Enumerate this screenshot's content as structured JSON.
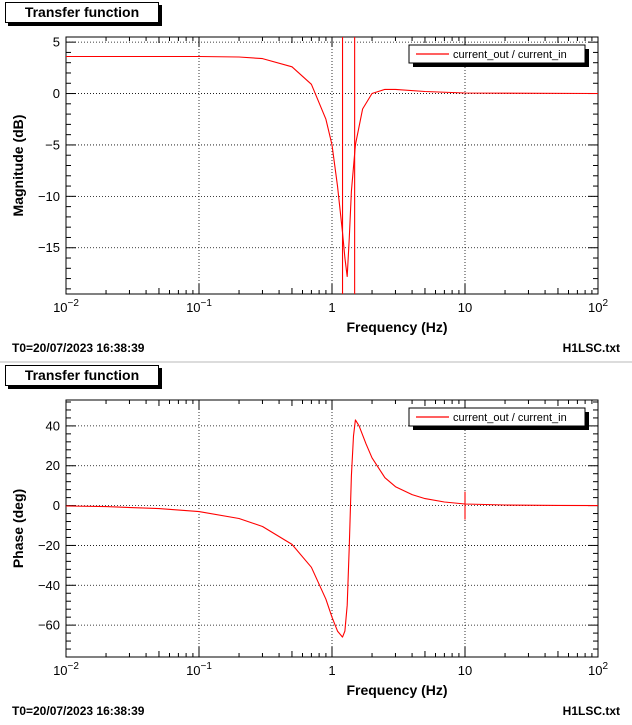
{
  "colors": {
    "curve": "#ff0000",
    "axis": "#000000",
    "grid": "#000000",
    "background": "#ffffff"
  },
  "footer": {
    "t0": "T0=20/07/2023 16:38:39",
    "file": "H1LSC.txt"
  },
  "chart_data": [
    {
      "type": "line",
      "title": "Transfer function",
      "xlabel": "Frequency (Hz)",
      "ylabel": "Magnitude (dB)",
      "xscale": "log",
      "xlim": [
        0.01,
        100
      ],
      "ylim": [
        -19.5,
        5.5
      ],
      "xticks": [
        0.01,
        0.1,
        1,
        10,
        100
      ],
      "xtick_labels": [
        [
          "10",
          "−2"
        ],
        [
          "10",
          "−1"
        ],
        [
          "1",
          ""
        ],
        [
          "10",
          ""
        ],
        [
          "10",
          "2"
        ]
      ],
      "yticks": [
        5,
        0,
        -5,
        -10,
        -15
      ],
      "ytick_labels": [
        "5",
        "0",
        "−5",
        "−10",
        "−15"
      ],
      "grid": true,
      "legend": "top-right",
      "series": [
        {
          "name": "current_out / current_in",
          "x": [
            0.01,
            0.02,
            0.05,
            0.1,
            0.2,
            0.3,
            0.5,
            0.7,
            0.9,
            1.0,
            1.1,
            1.2,
            1.25,
            1.3,
            1.35,
            1.4,
            1.5,
            1.7,
            2.0,
            2.5,
            3,
            5,
            10,
            100
          ],
          "y": [
            3.6,
            3.6,
            3.6,
            3.6,
            3.55,
            3.4,
            2.6,
            0.9,
            -2.5,
            -5.0,
            -9.0,
            -13.5,
            -16.0,
            -17.8,
            -14.0,
            -9.5,
            -5.0,
            -1.5,
            0.0,
            0.4,
            0.4,
            0.2,
            0.05,
            0.0
          ]
        }
      ],
      "annotations": {
        "vertical_lines_x": [
          1.2,
          1.48
        ]
      }
    },
    {
      "type": "line",
      "title": "Transfer function",
      "xlabel": "Frequency (Hz)",
      "ylabel": "Phase (deg)",
      "xscale": "log",
      "xlim": [
        0.01,
        100
      ],
      "ylim": [
        -76,
        53
      ],
      "xticks": [
        0.01,
        0.1,
        1,
        10,
        100
      ],
      "xtick_labels": [
        [
          "10",
          "−2"
        ],
        [
          "10",
          "−1"
        ],
        [
          "1",
          ""
        ],
        [
          "10",
          ""
        ],
        [
          "10",
          "2"
        ]
      ],
      "yticks": [
        40,
        20,
        0,
        -20,
        -40,
        -60
      ],
      "ytick_labels": [
        "40",
        "20",
        "0",
        "−20",
        "−40",
        "−60"
      ],
      "grid": true,
      "legend": "top-right",
      "series": [
        {
          "name": "current_out / current_in",
          "x": [
            0.01,
            0.02,
            0.05,
            0.1,
            0.2,
            0.3,
            0.5,
            0.7,
            0.9,
            1.0,
            1.1,
            1.2,
            1.25,
            1.3,
            1.35,
            1.4,
            1.45,
            1.5,
            1.6,
            1.8,
            2.0,
            2.5,
            3,
            4,
            5,
            7,
            10,
            20,
            50,
            100
          ],
          "y": [
            -0.2,
            -0.5,
            -1.5,
            -3.0,
            -6.5,
            -10.5,
            -19.5,
            -31,
            -47,
            -56,
            -63,
            -66,
            -63,
            -50,
            -20,
            15,
            35,
            43,
            40,
            31,
            24,
            14,
            9.5,
            5.5,
            3.5,
            1.8,
            0.8,
            0.3,
            0.1,
            0.0
          ]
        }
      ],
      "annotations": {
        "spike_x": 10
      }
    }
  ]
}
